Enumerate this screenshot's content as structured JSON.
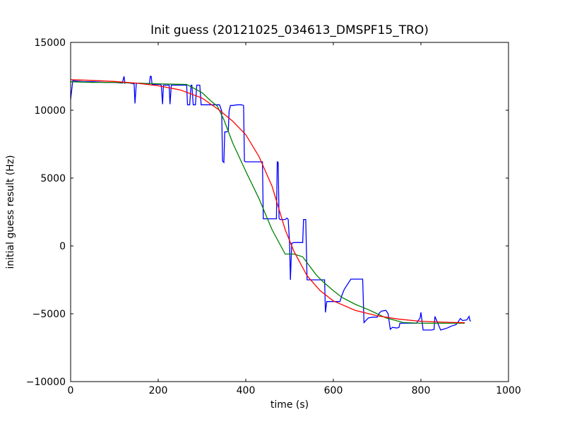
{
  "chart_data": {
    "type": "line",
    "title": "Init guess (20121025_034613_DMSPF15_TRO)",
    "xlabel": "time (s)",
    "ylabel": "initial guess result (Hz)",
    "xlim": [
      0,
      1000
    ],
    "ylim": [
      -10000,
      15000
    ],
    "xticks": [
      0,
      200,
      400,
      600,
      800,
      1000
    ],
    "yticks": [
      -10000,
      -5000,
      0,
      5000,
      10000,
      15000
    ],
    "xtick_labels": [
      "0",
      "200",
      "400",
      "600",
      "800",
      "1000"
    ],
    "ytick_labels": [
      "−10000",
      "−5000",
      "0",
      "5000",
      "10000",
      "15000"
    ],
    "grid": false,
    "legend": null,
    "series": [
      {
        "color": "#0000ff",
        "x": [
          0,
          5,
          10,
          30,
          50,
          80,
          100,
          118,
          122,
          124,
          126,
          145,
          147,
          150,
          180,
          182,
          184,
          186,
          205,
          207,
          210,
          212,
          225,
          227,
          230,
          232,
          235,
          265,
          267,
          272,
          275,
          277,
          280,
          285,
          288,
          295,
          298,
          303,
          310,
          340,
          345,
          347,
          350,
          352,
          355,
          360,
          362,
          365,
          370,
          380,
          390,
          395,
          397,
          400,
          410,
          420,
          438,
          440,
          442,
          455,
          470,
          472,
          474,
          476,
          478,
          480,
          490,
          494,
          497,
          500,
          502,
          505,
          510,
          520,
          530,
          532,
          537,
          540,
          545,
          555,
          560,
          565,
          575,
          580,
          582,
          585,
          595,
          605,
          615,
          620,
          625,
          640,
          660,
          667,
          670,
          680,
          690,
          700,
          705,
          710,
          720,
          725,
          730,
          735,
          745,
          750,
          752,
          760,
          790,
          798,
          800,
          805,
          815,
          825,
          830,
          832,
          845,
          850,
          860,
          870,
          880,
          885,
          890,
          895,
          905,
          910,
          912,
          914
        ],
        "y": [
          10800,
          12200,
          12150,
          12100,
          12100,
          12050,
          12050,
          12000,
          12500,
          12000,
          12050,
          11950,
          10500,
          12000,
          11950,
          12500,
          12500,
          11900,
          11900,
          11850,
          10450,
          11850,
          11850,
          10450,
          11850,
          11850,
          11850,
          11850,
          10400,
          10400,
          11850,
          11850,
          10400,
          10400,
          11850,
          11850,
          10400,
          10400,
          10400,
          10400,
          9950,
          6250,
          6150,
          8400,
          8400,
          8450,
          9950,
          10350,
          10350,
          10400,
          10400,
          10350,
          6250,
          6200,
          6200,
          6200,
          6200,
          2000,
          2000,
          2000,
          2000,
          6200,
          6150,
          2050,
          1950,
          1950,
          1950,
          2050,
          1950,
          200,
          -2500,
          200,
          250,
          250,
          250,
          1950,
          1950,
          -2500,
          -2500,
          -2500,
          -2500,
          -2500,
          -2500,
          -2500,
          -4900,
          -4100,
          -4100,
          -4100,
          -4100,
          -3600,
          -3200,
          -2450,
          -2450,
          -2450,
          -5650,
          -5300,
          -5250,
          -5250,
          -4950,
          -4800,
          -4750,
          -5000,
          -6150,
          -6000,
          -6050,
          -6000,
          -5700,
          -5700,
          -5700,
          -5300,
          -4900,
          -6200,
          -6200,
          -6200,
          -6150,
          -5200,
          -6200,
          -6150,
          -6050,
          -5900,
          -5800,
          -5600,
          -5350,
          -5500,
          -5450,
          -5200,
          -5500,
          -5550
        ]
      },
      {
        "color": "#008000",
        "x": [
          0,
          50,
          100,
          150,
          200,
          265,
          300,
          320,
          335,
          350,
          370,
          400,
          430,
          460,
          490,
          510,
          530,
          560,
          575,
          600,
          620,
          650,
          680,
          700,
          720,
          760,
          800,
          850,
          890,
          900
        ],
        "y": [
          12100,
          12050,
          12050,
          12000,
          11950,
          11900,
          11300,
          10700,
          10300,
          9300,
          7600,
          5500,
          3500,
          1200,
          -600,
          -600,
          -800,
          -2100,
          -2600,
          -3300,
          -3800,
          -4300,
          -4700,
          -5000,
          -5300,
          -5650,
          -5700,
          -5700,
          -5700,
          -5700
        ]
      },
      {
        "color": "#ff0000",
        "x": [
          0,
          50,
          100,
          150,
          200,
          250,
          300,
          340,
          370,
          400,
          430,
          460,
          490,
          510,
          540,
          570,
          600,
          650,
          700,
          750,
          800,
          850,
          900
        ],
        "y": [
          12250,
          12200,
          12120,
          12000,
          11800,
          11500,
          10900,
          10000,
          9200,
          8200,
          6600,
          4400,
          1200,
          -400,
          -2200,
          -3300,
          -4050,
          -4750,
          -5150,
          -5400,
          -5550,
          -5620,
          -5660
        ]
      }
    ]
  }
}
